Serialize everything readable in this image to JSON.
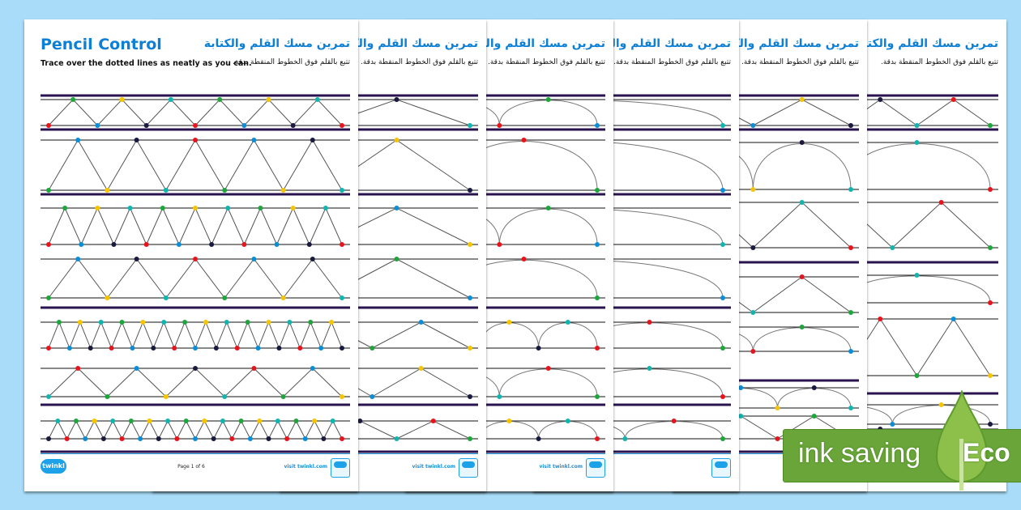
{
  "pages": [
    {
      "title_en": "Pencil Control",
      "subtitle_en": "Trace over the dotted lines as neatly as you can.",
      "title_ar": "تمرين مسك القلم والكتابة",
      "subtitle_ar": "تتبع بالقلم فوق الخطوط المنقطة بدقة.",
      "page_label": "Page 1 of 6",
      "visit": "visit twinkl.com",
      "logo": "twinkl"
    },
    {
      "title_ar": "تمرين مسك القلم والكتابة",
      "subtitle_ar": "تتبع بالقلم فوق الخطوط المنقطة بدقة.",
      "visit": "visit twinkl.com"
    },
    {
      "title_ar": "تمرين مسك القلم والكتابة",
      "subtitle_ar": "تتبع بالقلم فوق الخطوط المنقطة بدقة.",
      "visit": "visit twinkl.com"
    },
    {
      "title_ar": "تمرين مسك القلم والكتابة",
      "subtitle_ar": "تتبع بالقلم فوق الخطوط المنقطة بدقة."
    },
    {
      "title_ar": "تمرين مسك القلم والكتابة",
      "subtitle_ar": "تتبع بالقلم فوق الخطوط المنقطة بدقة."
    },
    {
      "title_ar": "تمرين مسك القلم والكتابة",
      "subtitle_ar": "تتبع بالقلم فوق الخطوط المنقطة بدقة."
    }
  ],
  "badge": {
    "text": "ink saving",
    "label": "Eco",
    "icon": "leaf-drop-icon"
  },
  "colors": {
    "background": "#a8dcf8",
    "title": "#0c7fd6",
    "band": "#2a1450",
    "eco_green": "#6aa53a",
    "dots": [
      "#e8141b",
      "#1da63a",
      "#0a8ed8",
      "#f6c400",
      "#1a1a40",
      "#11b5b0"
    ]
  }
}
